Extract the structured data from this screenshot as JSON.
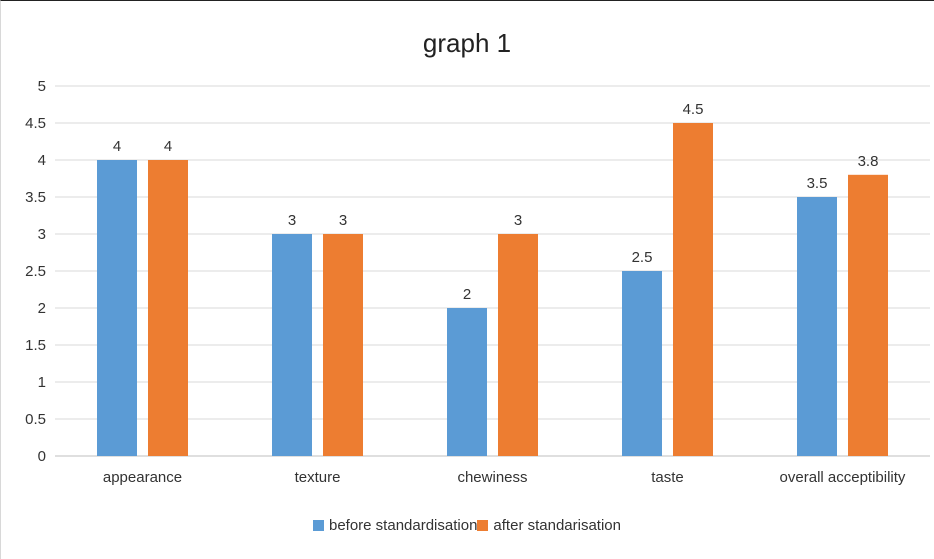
{
  "chart_data": {
    "type": "bar",
    "title": "graph 1",
    "xlabel": "",
    "ylabel": "",
    "categories": [
      "appearance",
      "texture",
      "chewiness",
      "taste",
      "overall acceptibility"
    ],
    "series": [
      {
        "name": "before standardisation",
        "values": [
          4,
          3,
          2,
          2.5,
          3.5
        ],
        "labels": [
          "4",
          "3",
          "2",
          "2.5",
          "3.5"
        ],
        "color": "#5b9bd5"
      },
      {
        "name": "after standarisation",
        "values": [
          4,
          3,
          3,
          4.5,
          3.8
        ],
        "labels": [
          "4",
          "3",
          "3",
          "4.5",
          "3.8"
        ],
        "color": "#ed7d31"
      }
    ],
    "ylim": [
      0,
      5
    ],
    "yticks": [
      "0",
      "0.5",
      "1",
      "1.5",
      "2",
      "2.5",
      "3",
      "3.5",
      "4",
      "4.5",
      "5"
    ],
    "grid": true,
    "legend_position": "bottom",
    "gridline_color": "#d9d9d9"
  }
}
